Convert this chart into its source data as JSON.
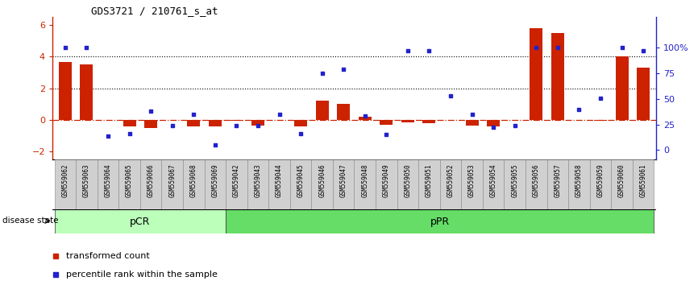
{
  "title": "GDS3721 / 210761_s_at",
  "samples": [
    "GSM559062",
    "GSM559063",
    "GSM559064",
    "GSM559065",
    "GSM559066",
    "GSM559067",
    "GSM559068",
    "GSM559069",
    "GSM559042",
    "GSM559043",
    "GSM559044",
    "GSM559045",
    "GSM559046",
    "GSM559047",
    "GSM559048",
    "GSM559049",
    "GSM559050",
    "GSM559051",
    "GSM559052",
    "GSM559053",
    "GSM559054",
    "GSM559055",
    "GSM559056",
    "GSM559057",
    "GSM559058",
    "GSM559059",
    "GSM559060",
    "GSM559061"
  ],
  "transformed_count": [
    3.65,
    3.5,
    0.0,
    -0.4,
    -0.5,
    0.0,
    -0.4,
    -0.4,
    -0.05,
    -0.35,
    0.0,
    -0.4,
    1.2,
    1.0,
    0.2,
    -0.3,
    -0.15,
    -0.2,
    0.0,
    -0.35,
    -0.4,
    0.0,
    5.8,
    5.5,
    0.0,
    -0.05,
    4.0,
    3.3
  ],
  "percentile_rank": [
    100,
    100,
    14,
    16,
    38,
    24,
    35,
    5,
    24,
    24,
    35,
    16,
    75,
    79,
    33,
    15,
    97,
    97,
    53,
    35,
    22,
    24,
    100,
    100,
    40,
    51,
    100,
    97
  ],
  "pCR_count": 8,
  "pPR_count": 20,
  "bar_color": "#cc2200",
  "dot_color": "#2222cc",
  "pCR_color": "#bbffbb",
  "pPR_color": "#66dd66",
  "pCR_label": "pCR",
  "pPR_label": "pPR",
  "disease_state_label": "disease state",
  "legend_bar": "transformed count",
  "legend_dot": "percentile rank within the sample",
  "ylim_left": [
    -2.5,
    6.5
  ],
  "ylim_right": [
    -9.375,
    130
  ],
  "yticks_left": [
    -2,
    0,
    2,
    4,
    6
  ],
  "yticks_right": [
    0,
    25,
    50,
    75,
    100
  ],
  "bg_color": "#ffffff"
}
